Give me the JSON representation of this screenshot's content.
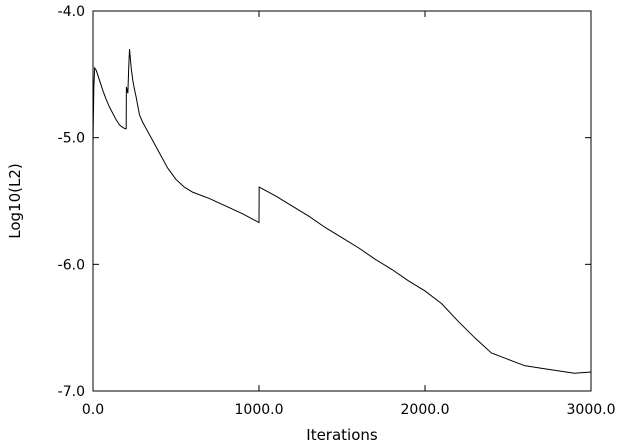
{
  "chart_data": {
    "type": "line",
    "title": "",
    "xlabel": "Iterations",
    "ylabel": "Log10(L2)",
    "xlim": [
      0,
      3000
    ],
    "ylim": [
      -7.0,
      -4.0
    ],
    "x_ticks": [
      0,
      1000,
      2000,
      3000
    ],
    "x_tick_labels": [
      "0.0",
      "1000.0",
      "2000.0",
      "3000.0"
    ],
    "y_ticks": [
      -4.0,
      -5.0,
      -6.0,
      -7.0
    ],
    "y_tick_labels": [
      "-4.0",
      "-5.0",
      "-6.0",
      "-7.0"
    ],
    "grid": false,
    "legend": "none",
    "line_color": "#000000",
    "series": [
      {
        "x": [
          0,
          5,
          10,
          20,
          40,
          60,
          80,
          100,
          120,
          140,
          160,
          180,
          195,
          200,
          201,
          205,
          210,
          215,
          220,
          230,
          240,
          250,
          260,
          270,
          280,
          300,
          350,
          400,
          450,
          500,
          550,
          600,
          700,
          800,
          900,
          1000,
          1001,
          1100,
          1200,
          1300,
          1400,
          1500,
          1600,
          1700,
          1800,
          1900,
          2000,
          2100,
          2200,
          2300,
          2400,
          2500,
          2600,
          2700,
          2800,
          2900,
          3000
        ],
        "y": [
          -5.05,
          -4.6,
          -4.45,
          -4.47,
          -4.55,
          -4.63,
          -4.7,
          -4.76,
          -4.81,
          -4.86,
          -4.9,
          -4.92,
          -4.93,
          -4.93,
          -4.6,
          -4.62,
          -4.65,
          -4.45,
          -4.3,
          -4.45,
          -4.55,
          -4.62,
          -4.68,
          -4.75,
          -4.82,
          -4.88,
          -5.0,
          -5.12,
          -5.24,
          -5.33,
          -5.39,
          -5.43,
          -5.48,
          -5.54,
          -5.6,
          -5.67,
          -5.39,
          -5.46,
          -5.54,
          -5.62,
          -5.71,
          -5.79,
          -5.87,
          -5.96,
          -6.04,
          -6.13,
          -6.21,
          -6.31,
          -6.45,
          -6.58,
          -6.7,
          -6.75,
          -6.8,
          -6.82,
          -6.84,
          -6.86,
          -6.85
        ]
      }
    ]
  }
}
